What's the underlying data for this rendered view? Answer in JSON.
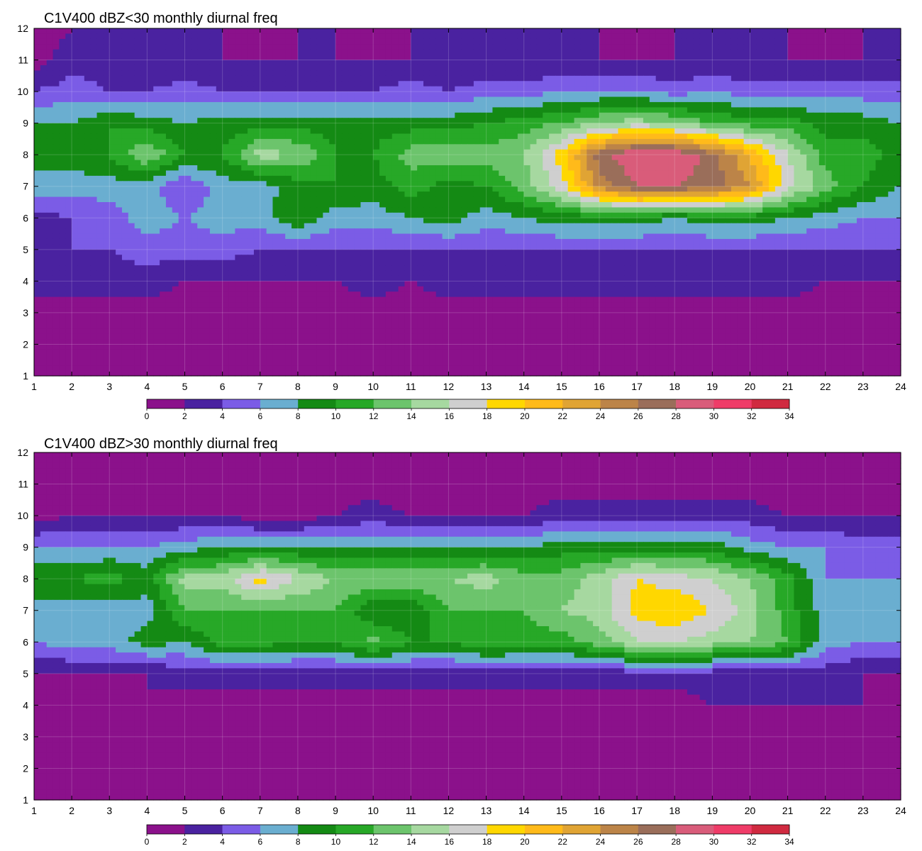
{
  "chart_data": [
    {
      "type": "heatmap",
      "subtype": "filled-contour",
      "title": "C1V400 dBZ<30 monthly diurnal freq",
      "xlabel": "",
      "ylabel": "",
      "xlim": [
        1,
        24
      ],
      "ylim": [
        1,
        12
      ],
      "x_ticks": [
        "1",
        "2",
        "3",
        "4",
        "5",
        "6",
        "7",
        "8",
        "9",
        "10",
        "11",
        "12",
        "13",
        "14",
        "15",
        "16",
        "17",
        "18",
        "19",
        "20",
        "21",
        "22",
        "23",
        "24"
      ],
      "y_ticks": [
        "1",
        "2",
        "3",
        "4",
        "5",
        "6",
        "7",
        "8",
        "9",
        "10",
        "11",
        "12"
      ],
      "grid": true,
      "contour_line_color": "#e8a13a",
      "colorbar": {
        "placement": "bottom",
        "levels": [
          0,
          2,
          4,
          6,
          8,
          10,
          12,
          14,
          16,
          18,
          20,
          22,
          24,
          26,
          28,
          30,
          32,
          34
        ],
        "labels": [
          "0",
          "2",
          "4",
          "6",
          "8",
          "10",
          "12",
          "14",
          "16",
          "18",
          "20",
          "22",
          "24",
          "26",
          "28",
          "30",
          "32",
          "34"
        ],
        "colors": [
          "#8b118b",
          "#4a22a0",
          "#7b5ce6",
          "#6aaed0",
          "#148a14",
          "#27a827",
          "#6cc46c",
          "#a6d8a0",
          "#cfcfcf",
          "#ffd700",
          "#ffba1a",
          "#e0a434",
          "#bc8448",
          "#9a6e5a",
          "#d95c7a",
          "#ef3c68",
          "#d02a40"
        ]
      },
      "x": [
        1,
        2,
        3,
        4,
        5,
        6,
        7,
        8,
        9,
        10,
        11,
        12,
        13,
        14,
        15,
        16,
        17,
        18,
        19,
        20,
        21,
        22,
        23,
        24
      ],
      "y": [
        1,
        2,
        3,
        4,
        5,
        6,
        7,
        8,
        9,
        10,
        11,
        12
      ],
      "z": [
        [
          0,
          0,
          0,
          1,
          0,
          0,
          0,
          0,
          0,
          0,
          0,
          0,
          0,
          0,
          0,
          0,
          0,
          0,
          0,
          0,
          0,
          0,
          0,
          0
        ],
        [
          1,
          0,
          0,
          1,
          0,
          0,
          0,
          0,
          0,
          0,
          0,
          0,
          0,
          0,
          0,
          0,
          0,
          0,
          1,
          1,
          0,
          0,
          0,
          0
        ],
        [
          1,
          1,
          1,
          1,
          1,
          1,
          1,
          1,
          1,
          1,
          1,
          1,
          1,
          1,
          1,
          1,
          1,
          1,
          1,
          1,
          1,
          1,
          1,
          1
        ],
        [
          3,
          3,
          3,
          3,
          2,
          2,
          2,
          2,
          2,
          3,
          2,
          3,
          3,
          3,
          3,
          3,
          3,
          3,
          3,
          3,
          3,
          2,
          2,
          2
        ],
        [
          4,
          4,
          4,
          5,
          5,
          5,
          4,
          4,
          4,
          4,
          4,
          4,
          4,
          4,
          4,
          4,
          4,
          4,
          4,
          4,
          4,
          4,
          4,
          4
        ],
        [
          3,
          4,
          5,
          7,
          6,
          7,
          7,
          10,
          7,
          7,
          8,
          9,
          7,
          8,
          9,
          9,
          9,
          8,
          9,
          9,
          8,
          7,
          6,
          6
        ],
        [
          7,
          7,
          7,
          7,
          4,
          7,
          7,
          9,
          10,
          9,
          11,
          9,
          10,
          13,
          17,
          25,
          28,
          28,
          27,
          24,
          17,
          13,
          10,
          8
        ],
        [
          9,
          9,
          10,
          14,
          10,
          10,
          15,
          14,
          10,
          10,
          13,
          13,
          13,
          14,
          19,
          27,
          30,
          30,
          27,
          22,
          16,
          11,
          11,
          9
        ],
        [
          8,
          8,
          10,
          9,
          8,
          9,
          9,
          9,
          9,
          9,
          9,
          9,
          10,
          11,
          12,
          14,
          15,
          14,
          12,
          11,
          11,
          9,
          9,
          8
        ],
        [
          4,
          5,
          4,
          4,
          5,
          4,
          4,
          4,
          4,
          4,
          5,
          4,
          5,
          5,
          6,
          6,
          6,
          5,
          6,
          5,
          5,
          5,
          5,
          5
        ],
        [
          1,
          3,
          3,
          2,
          2,
          2,
          2,
          2,
          2,
          2,
          2,
          2,
          2,
          2,
          2,
          2,
          2,
          2,
          2,
          2,
          2,
          2,
          2,
          2
        ],
        [
          1,
          2,
          2,
          2,
          2,
          2,
          1,
          2,
          2,
          1,
          2,
          2,
          2,
          2,
          2,
          2,
          1,
          2,
          2,
          2,
          2,
          1,
          2,
          2
        ]
      ]
    },
    {
      "type": "heatmap",
      "subtype": "filled-contour",
      "title": "C1V400 dBZ>30 monthly diurnal freq",
      "xlabel": "",
      "ylabel": "",
      "xlim": [
        1,
        24
      ],
      "ylim": [
        1,
        12
      ],
      "x_ticks": [
        "1",
        "2",
        "3",
        "4",
        "5",
        "6",
        "7",
        "8",
        "9",
        "10",
        "11",
        "12",
        "13",
        "14",
        "15",
        "16",
        "17",
        "18",
        "19",
        "20",
        "21",
        "22",
        "23",
        "24"
      ],
      "y_ticks": [
        "1",
        "2",
        "3",
        "4",
        "5",
        "6",
        "7",
        "8",
        "9",
        "10",
        "11",
        "12"
      ],
      "grid": true,
      "contour_line_color": "#e8a13a",
      "colorbar": {
        "placement": "bottom",
        "levels": [
          0,
          2,
          4,
          6,
          8,
          10,
          12,
          14,
          16,
          18,
          20,
          22,
          24,
          26,
          28,
          30,
          32,
          34
        ],
        "labels": [
          "0",
          "2",
          "4",
          "6",
          "8",
          "10",
          "12",
          "14",
          "16",
          "18",
          "20",
          "22",
          "24",
          "26",
          "28",
          "30",
          "32",
          "34"
        ],
        "colors": [
          "#8b118b",
          "#4a22a0",
          "#7b5ce6",
          "#6aaed0",
          "#148a14",
          "#27a827",
          "#6cc46c",
          "#a6d8a0",
          "#cfcfcf",
          "#ffd700",
          "#ffba1a",
          "#e0a434",
          "#bc8448",
          "#9a6e5a",
          "#d95c7a",
          "#ef3c68",
          "#d02a40"
        ]
      },
      "x": [
        1,
        2,
        3,
        4,
        5,
        6,
        7,
        8,
        9,
        10,
        11,
        12,
        13,
        14,
        15,
        16,
        17,
        18,
        19,
        20,
        21,
        22,
        23,
        24
      ],
      "y": [
        1,
        2,
        3,
        4,
        5,
        6,
        7,
        8,
        9,
        10,
        11,
        12
      ],
      "z": [
        [
          0,
          0,
          0,
          0,
          0,
          0,
          0,
          0,
          0,
          0,
          0,
          0,
          0,
          0,
          0,
          0,
          0,
          0,
          0,
          0,
          0,
          0,
          0,
          0
        ],
        [
          0,
          0,
          0,
          0,
          0,
          0,
          0,
          0,
          0,
          0,
          0,
          0,
          0,
          0,
          0,
          0,
          0,
          0,
          0,
          0,
          0,
          0,
          0,
          0
        ],
        [
          0,
          0,
          0,
          0,
          0,
          0,
          0,
          0,
          0,
          0,
          0,
          0,
          0,
          0,
          0,
          0,
          0,
          1,
          1,
          1,
          0,
          1,
          1,
          1
        ],
        [
          0,
          1,
          1,
          2,
          1,
          1,
          1,
          1,
          1,
          1,
          1,
          1,
          1,
          1,
          1,
          1,
          1,
          1,
          2,
          2,
          2,
          2,
          2,
          1
        ],
        [
          2,
          2,
          2,
          2,
          3,
          3,
          3,
          3,
          3,
          3,
          3,
          3,
          3,
          3,
          3,
          3,
          3,
          3,
          3,
          3,
          3,
          3,
          2,
          2
        ],
        [
          6,
          7,
          7,
          9,
          8,
          11,
          11,
          10,
          10,
          13,
          10,
          10,
          12,
          11,
          11,
          13,
          16,
          16,
          15,
          14,
          12,
          7,
          6,
          6
        ],
        [
          7,
          7,
          7,
          7,
          12,
          12,
          12,
          12,
          12,
          8,
          8,
          12,
          12,
          12,
          14,
          15,
          19,
          20,
          18,
          15,
          11,
          7,
          6,
          6
        ],
        [
          10,
          10,
          11,
          9,
          15,
          15,
          19,
          16,
          14,
          14,
          14,
          14,
          15,
          13,
          13,
          15,
          18,
          17,
          16,
          14,
          11,
          6,
          6,
          6
        ],
        [
          6,
          6,
          6,
          6,
          7,
          8,
          8,
          8,
          8,
          8,
          8,
          8,
          8,
          8,
          9,
          9,
          9,
          9,
          9,
          7,
          6,
          6,
          5,
          5
        ],
        [
          1,
          2,
          2,
          2,
          2,
          2,
          1,
          1,
          2,
          3,
          2,
          2,
          2,
          2,
          3,
          3,
          3,
          3,
          3,
          3,
          2,
          2,
          2,
          2
        ],
        [
          0,
          1,
          1,
          1,
          1,
          0,
          0,
          0,
          1,
          1,
          0,
          1,
          1,
          1,
          1,
          1,
          1,
          1,
          1,
          1,
          0,
          0,
          0,
          0
        ],
        [
          0,
          0,
          0,
          0,
          0,
          0,
          0,
          0,
          0,
          0,
          0,
          0,
          0,
          0,
          0,
          0,
          0,
          0,
          0,
          0,
          0,
          0,
          0,
          0
        ]
      ]
    }
  ]
}
